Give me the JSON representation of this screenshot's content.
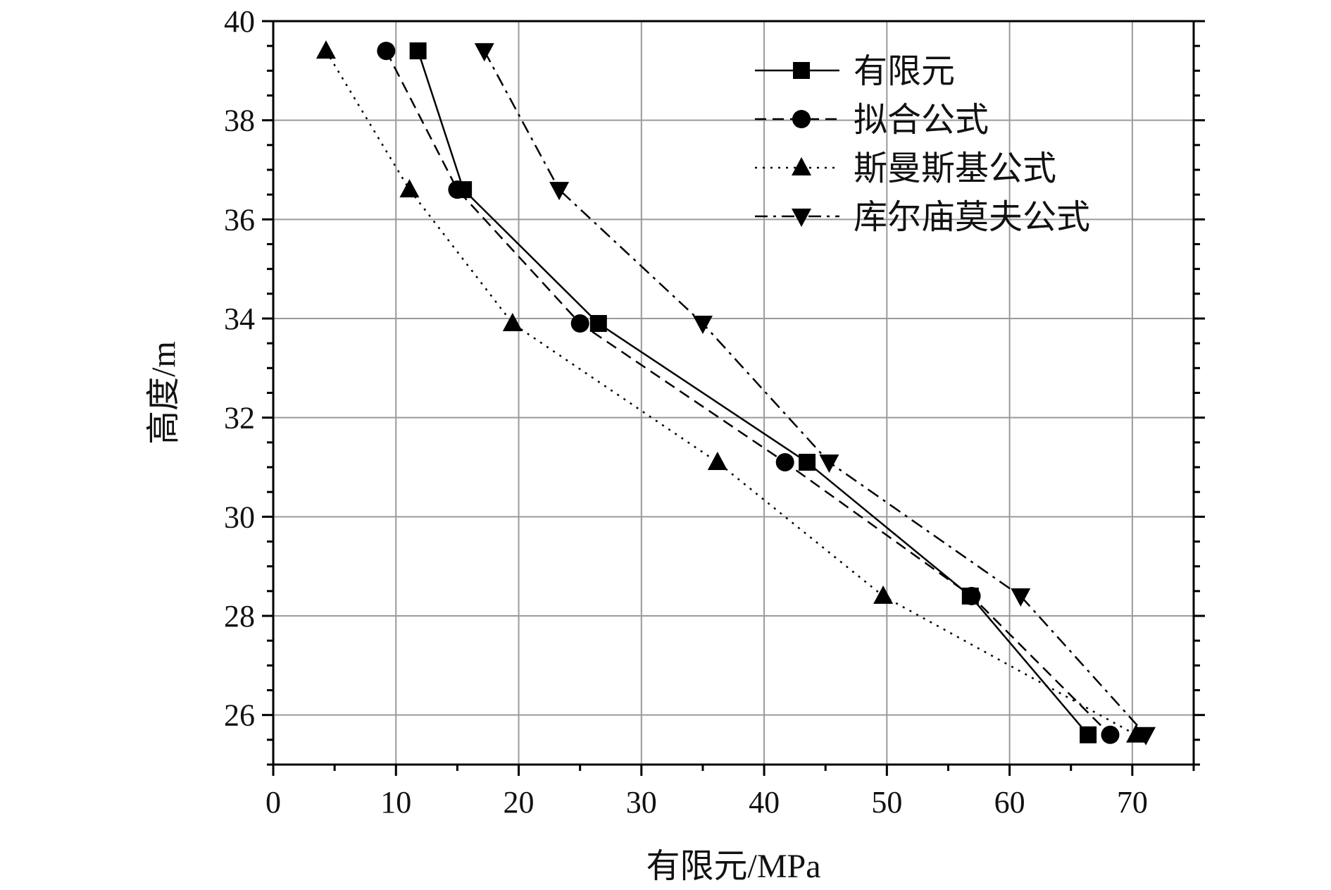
{
  "chart_data": {
    "type": "line",
    "title": "",
    "xlabel": "有限元/MPa",
    "ylabel": "高度/m",
    "xlim": [
      0,
      75
    ],
    "ylim": [
      25,
      40
    ],
    "xticks": [
      0,
      10,
      20,
      30,
      40,
      50,
      60,
      70
    ],
    "yticks": [
      26,
      28,
      30,
      32,
      34,
      36,
      38,
      40
    ],
    "grid": true,
    "legend_position": "top-right",
    "series": [
      {
        "name": "有限元",
        "marker": "square",
        "line_style": "solid",
        "x": [
          11.8,
          15.5,
          26.5,
          43.5,
          56.8,
          66.4
        ],
        "y": [
          39.4,
          36.6,
          33.9,
          31.1,
          28.4,
          25.6
        ]
      },
      {
        "name": "拟合公式",
        "marker": "circle",
        "line_style": "dashed",
        "x": [
          9.2,
          15.0,
          25.0,
          41.7,
          56.9,
          68.2
        ],
        "y": [
          39.4,
          36.6,
          33.9,
          31.1,
          28.4,
          25.6
        ]
      },
      {
        "name": "斯曼斯基公式",
        "marker": "triangle-up",
        "line_style": "dotted",
        "x": [
          4.3,
          11.1,
          19.5,
          36.2,
          49.7,
          70.3
        ],
        "y": [
          39.4,
          36.6,
          33.9,
          31.1,
          28.4,
          25.6
        ]
      },
      {
        "name": "库尔庙莫夫公式",
        "marker": "triangle-down",
        "line_style": "dashdot",
        "x": [
          17.2,
          23.3,
          35.0,
          45.3,
          60.9,
          71.1
        ],
        "y": [
          39.4,
          36.6,
          33.9,
          31.1,
          28.4,
          25.6
        ]
      }
    ]
  }
}
